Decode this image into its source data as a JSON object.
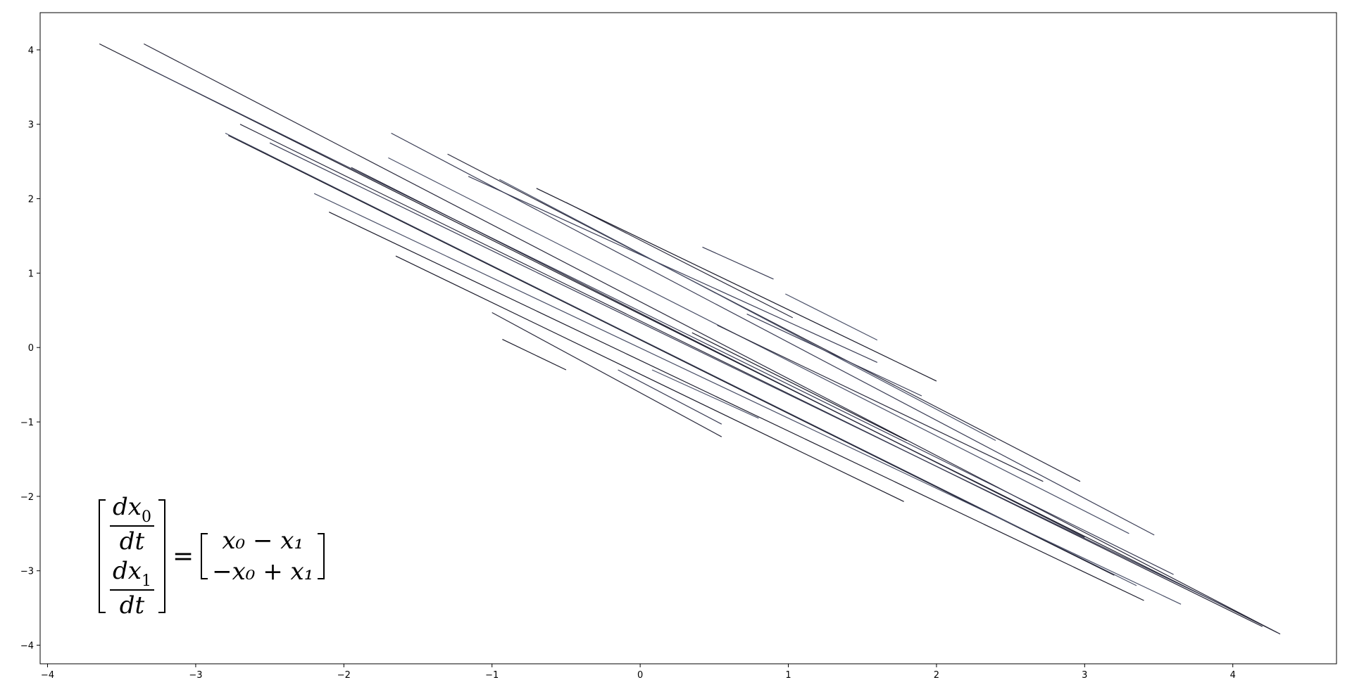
{
  "chart_data": {
    "type": "line",
    "title": "",
    "xlabel": "",
    "ylabel": "",
    "xlim": [
      -4.05,
      4.7
    ],
    "ylim": [
      -4.25,
      4.5
    ],
    "grid": false,
    "x_ticks": [
      -4,
      -3,
      -2,
      -1,
      0,
      1,
      2,
      3,
      4
    ],
    "y_ticks": [
      4,
      3,
      2,
      1,
      0,
      -1,
      -2,
      -3,
      -4
    ],
    "x_tick_labels": [
      "−4",
      "−3",
      "−2",
      "−1",
      "0",
      "1",
      "2",
      "3",
      "4"
    ],
    "y_tick_labels": [
      "4",
      "3",
      "2",
      "1",
      "0",
      "−1",
      "−2",
      "−3",
      "−4"
    ],
    "series": [
      {
        "x": [
          -3.65,
          4.3
        ],
        "y": [
          4.08,
          -3.83
        ]
      },
      {
        "x": [
          -3.35,
          4.32
        ],
        "y": [
          4.08,
          -3.85
        ]
      },
      {
        "x": [
          -3.35,
          3.6
        ],
        "y": [
          3.78,
          -3.05
        ]
      },
      {
        "x": [
          -2.8,
          3.35
        ],
        "y": [
          2.88,
          -3.2
        ]
      },
      {
        "x": [
          -2.78,
          3.2
        ],
        "y": [
          2.85,
          -3.06
        ]
      },
      {
        "x": [
          -2.7,
          4.2
        ],
        "y": [
          3.0,
          -3.75
        ]
      },
      {
        "x": [
          -2.5,
          3.95
        ],
        "y": [
          2.75,
          -3.48
        ]
      },
      {
        "x": [
          -2.2,
          3.65
        ],
        "y": [
          2.07,
          -3.45
        ]
      },
      {
        "x": [
          -2.1,
          3.4
        ],
        "y": [
          1.82,
          -3.4
        ]
      },
      {
        "x": [
          -1.95,
          3.0
        ],
        "y": [
          2.42,
          -2.55
        ]
      },
      {
        "x": [
          -1.68,
          3.47
        ],
        "y": [
          2.88,
          -2.52
        ]
      },
      {
        "x": [
          -1.7,
          3.3
        ],
        "y": [
          2.55,
          -2.5
        ]
      },
      {
        "x": [
          -1.65,
          1.78
        ],
        "y": [
          1.23,
          -2.07
        ]
      },
      {
        "x": [
          -1.3,
          2.97
        ],
        "y": [
          2.6,
          -1.8
        ]
      },
      {
        "x": [
          -1.16,
          1.6
        ],
        "y": [
          2.3,
          -0.2
        ]
      },
      {
        "x": [
          -0.95,
          2.4
        ],
        "y": [
          2.26,
          -1.25
        ]
      },
      {
        "x": [
          -0.7,
          2.0
        ],
        "y": [
          2.14,
          -0.45
        ]
      },
      {
        "x": [
          -0.5,
          1.03
        ],
        "y": [
          1.95,
          0.4
        ]
      },
      {
        "x": [
          0.42,
          0.9
        ],
        "y": [
          1.35,
          0.92
        ]
      },
      {
        "x": [
          0.98,
          1.6
        ],
        "y": [
          0.72,
          0.1
        ]
      },
      {
        "x": [
          -0.93,
          -0.5
        ],
        "y": [
          0.11,
          -0.3
        ]
      },
      {
        "x": [
          -1.0,
          0.55
        ],
        "y": [
          0.47,
          -1.2
        ]
      },
      {
        "x": [
          -0.15,
          0.55
        ],
        "y": [
          -0.3,
          -1.03
        ]
      },
      {
        "x": [
          0.08,
          0.8
        ],
        "y": [
          -0.3,
          -0.95
        ]
      },
      {
        "x": [
          0.35,
          1.8
        ],
        "y": [
          0.2,
          -1.25
        ]
      },
      {
        "x": [
          0.52,
          2.72
        ],
        "y": [
          0.3,
          -1.8
        ]
      },
      {
        "x": [
          0.72,
          1.9
        ],
        "y": [
          0.45,
          -0.65
        ]
      }
    ]
  },
  "equation": {
    "lhs_top_num": "dx",
    "lhs_top_sub": "0",
    "lhs_top_den": "dt",
    "lhs_bot_num": "dx",
    "lhs_bot_sub": "1",
    "lhs_bot_den": "dt",
    "equals": "=",
    "rhs_top": "x₀ − x₁",
    "rhs_bot": "−x₀ + x₁"
  }
}
